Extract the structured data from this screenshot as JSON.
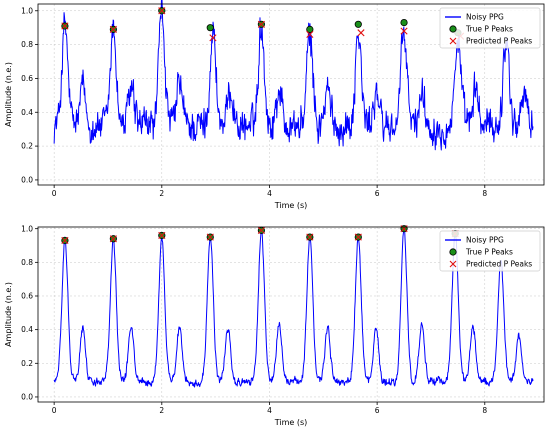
{
  "colors": {
    "signal": "#0000ff",
    "true_peak_fill": "#1a8f1a",
    "true_peak_edge": "#000000",
    "pred_peak": "#e01010"
  },
  "chart_data": [
    {
      "type": "line",
      "title": "",
      "xlabel": "Time (s)",
      "ylabel": "Amplitude (n.e.)",
      "xlim": [
        -0.3,
        9.1
      ],
      "ylim": [
        -0.03,
        1.04
      ],
      "xticks": [
        0,
        2,
        4,
        6,
        8
      ],
      "yticks": [
        0.0,
        0.2,
        0.4,
        0.6,
        0.8,
        1.0
      ],
      "xtick_labels": [
        "0",
        "2",
        "4",
        "6",
        "8"
      ],
      "ytick_labels": [
        "0.0",
        "0.2",
        "0.4",
        "0.6",
        "0.8",
        "1.0"
      ],
      "grid": true,
      "legend_position": "top-right",
      "legend": [
        "Noisy PPG",
        "True P Peaks",
        "Predicted P Peaks"
      ],
      "signal": {
        "name": "Noisy PPG",
        "x_range": [
          0.0,
          8.9
        ],
        "baseline": 0.32,
        "noise_amplitude": 0.085,
        "peak_times": [
          0.2,
          1.1,
          2.0,
          2.95,
          3.85,
          4.75,
          5.65,
          6.5,
          7.5,
          8.4
        ],
        "peak_heights": [
          0.91,
          0.89,
          1.0,
          0.88,
          0.92,
          0.86,
          0.87,
          0.87,
          0.85,
          0.85
        ]
      },
      "series": [
        {
          "name": "True P Peaks",
          "x": [
            0.2,
            1.1,
            2.0,
            2.9,
            3.85,
            4.75,
            5.65,
            6.5,
            7.5
          ],
          "y": [
            0.91,
            0.89,
            1.0,
            0.9,
            0.92,
            0.89,
            0.92,
            0.93,
            0.87
          ]
        },
        {
          "name": "Predicted P Peaks",
          "x": [
            0.2,
            1.1,
            2.0,
            2.95,
            3.85,
            4.75,
            5.7,
            6.5,
            7.55
          ],
          "y": [
            0.91,
            0.89,
            1.0,
            0.84,
            0.92,
            0.86,
            0.87,
            0.88,
            0.85
          ]
        }
      ]
    },
    {
      "type": "line",
      "title": "",
      "xlabel": "Time (s)",
      "ylabel": "Amplitude (n.e.)",
      "xlim": [
        -0.3,
        9.1
      ],
      "ylim": [
        -0.03,
        1.01
      ],
      "xticks": [
        0,
        2,
        4,
        6,
        8
      ],
      "yticks": [
        0.0,
        0.2,
        0.4,
        0.6,
        0.8,
        1.0
      ],
      "xtick_labels": [
        "0",
        "2",
        "4",
        "6",
        "8"
      ],
      "ytick_labels": [
        "0.0",
        "0.2",
        "0.4",
        "0.6",
        "0.8",
        "1.0"
      ],
      "grid": true,
      "legend_position": "top-right",
      "legend": [
        "Noisy PPG",
        "True P Peaks",
        "Predicted P Peaks"
      ],
      "signal": {
        "name": "Noisy PPG",
        "x_range": [
          0.0,
          8.9
        ],
        "baseline": 0.09,
        "noise_amplitude": 0.02,
        "peak_times": [
          0.2,
          1.1,
          2.0,
          2.9,
          3.85,
          4.75,
          5.65,
          6.5,
          7.45,
          8.3
        ],
        "peak_heights": [
          0.93,
          0.94,
          0.96,
          0.95,
          0.99,
          0.95,
          0.95,
          1.0,
          0.97,
          0.8
        ]
      },
      "series": [
        {
          "name": "True P Peaks",
          "x": [
            0.2,
            1.1,
            2.0,
            2.9,
            3.85,
            4.75,
            5.65,
            6.5,
            7.45
          ],
          "y": [
            0.93,
            0.94,
            0.96,
            0.95,
            0.99,
            0.95,
            0.95,
            1.0,
            0.97
          ]
        },
        {
          "name": "Predicted P Peaks",
          "x": [
            0.2,
            1.1,
            2.0,
            2.9,
            3.85,
            4.75,
            5.65,
            6.5,
            7.45
          ],
          "y": [
            0.93,
            0.94,
            0.96,
            0.95,
            0.99,
            0.95,
            0.95,
            1.0,
            0.97
          ]
        }
      ]
    }
  ]
}
